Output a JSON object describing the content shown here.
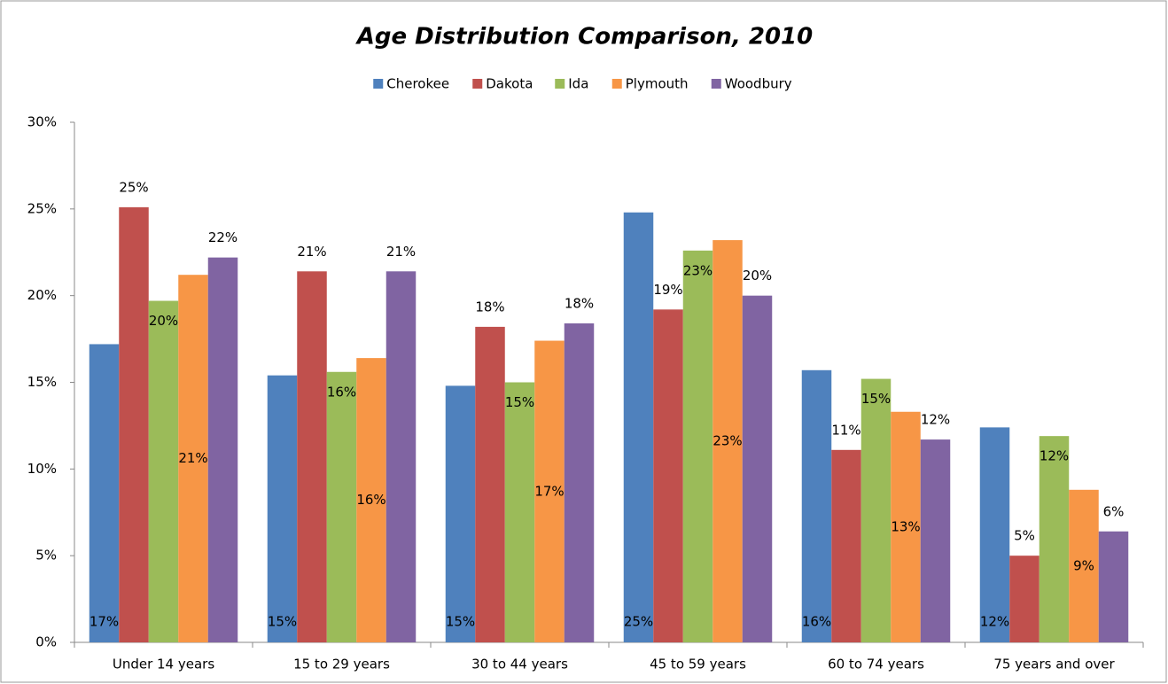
{
  "chart_data": {
    "type": "bar",
    "title": "Age Distribution Comparison, 2010",
    "categories": [
      "Under 14 years",
      "15 to 29 years",
      "30 to 44 years",
      "45 to 59 years",
      "60 to 74 years",
      "75 years and over"
    ],
    "series": [
      {
        "name": "Cherokee",
        "color": "#4f81bd",
        "values": [
          17.2,
          15.4,
          14.8,
          24.8,
          15.7,
          12.4
        ],
        "value_labels": [
          "17%",
          "15%",
          "15%",
          "25%",
          "16%",
          "12%"
        ]
      },
      {
        "name": "Dakota",
        "color": "#c0504d",
        "values": [
          25.1,
          21.4,
          18.2,
          19.2,
          11.1,
          5.0
        ],
        "value_labels": [
          "25%",
          "21%",
          "18%",
          "19%",
          "11%",
          "5%"
        ]
      },
      {
        "name": "Ida",
        "color": "#9bbb59",
        "values": [
          19.7,
          15.6,
          15.0,
          22.6,
          15.2,
          11.9
        ],
        "value_labels": [
          "20%",
          "16%",
          "15%",
          "23%",
          "15%",
          "12%"
        ]
      },
      {
        "name": "Plymouth",
        "color": "#f79646",
        "values": [
          21.2,
          16.4,
          17.4,
          23.2,
          13.3,
          8.8
        ],
        "value_labels": [
          "21%",
          "16%",
          "17%",
          "23%",
          "13%",
          "9%"
        ]
      },
      {
        "name": "Woodbury",
        "color": "#8064a2",
        "values": [
          22.2,
          21.4,
          18.4,
          20.0,
          11.7,
          6.4
        ],
        "value_labels": [
          "22%",
          "21%",
          "18%",
          "20%",
          "12%",
          "6%"
        ]
      }
    ],
    "ylim": [
      0,
      30
    ],
    "yticks": [
      {
        "value": 0,
        "label": "0%"
      },
      {
        "value": 5,
        "label": "5%"
      },
      {
        "value": 10,
        "label": "10%"
      },
      {
        "value": 15,
        "label": "15%"
      },
      {
        "value": 20,
        "label": "20%"
      },
      {
        "value": 25,
        "label": "25%"
      },
      {
        "value": 30,
        "label": "30%"
      }
    ],
    "legend": "top"
  }
}
